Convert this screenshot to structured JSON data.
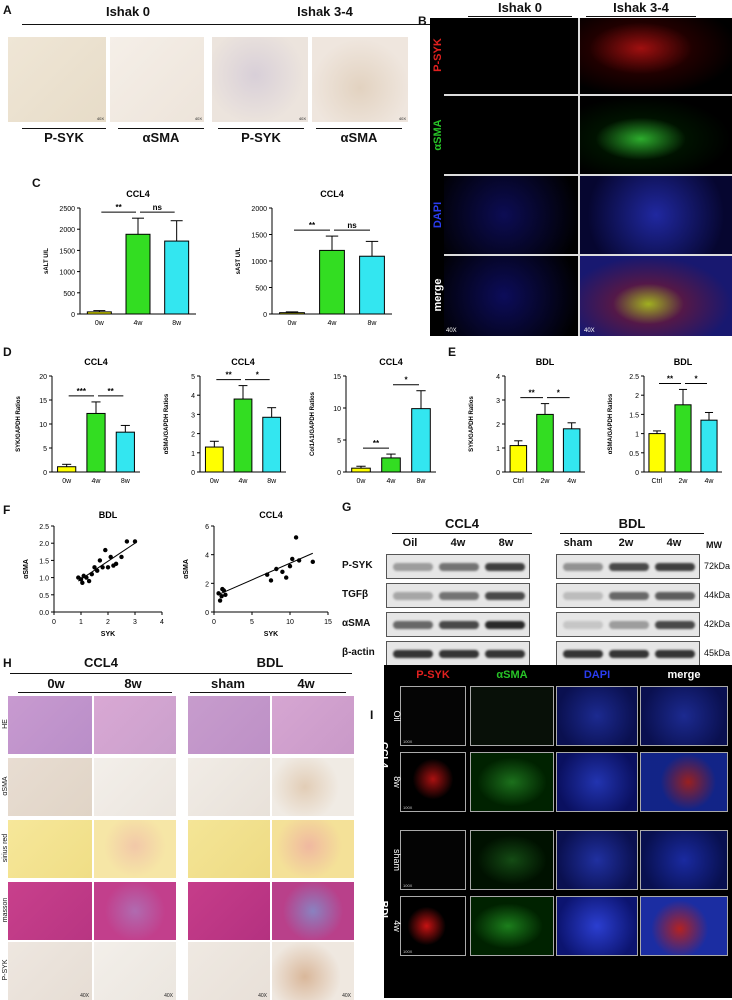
{
  "panels": {
    "A": {
      "label": "A",
      "headers": [
        "Ishak 0",
        "Ishak 3-4"
      ],
      "tile_labels": [
        "P-SYK",
        "αSMA",
        "P-SYK",
        "αSMA"
      ],
      "magnification": "40X"
    },
    "B": {
      "label": "B",
      "headers": [
        "Ishak 0",
        "Ishak 3-4"
      ],
      "row_labels": [
        "P-SYK",
        "αSMA",
        "DAPI",
        "merge"
      ],
      "row_colors": [
        "#e0201f",
        "#27c427",
        "#2a3cf0",
        "#ffffff"
      ],
      "magnification": "40X"
    },
    "C": {
      "label": "C"
    },
    "D": {
      "label": "D"
    },
    "E": {
      "label": "E"
    },
    "F": {
      "label": "F"
    },
    "G": {
      "label": "G",
      "group_headers": [
        "CCL4",
        "BDL"
      ],
      "lane_labels_ccl4": [
        "Oil",
        "4w",
        "8w"
      ],
      "lane_labels_bdl": [
        "sham",
        "2w",
        "4w"
      ],
      "mw_header": "MW",
      "rows": [
        {
          "protein": "P-SYK",
          "mw": "72kDa"
        },
        {
          "protein": "TGFβ",
          "mw": "44kDa"
        },
        {
          "protein": "αSMA",
          "mw": "42kDa"
        },
        {
          "protein": "β-actin",
          "mw": "45kDa"
        }
      ]
    },
    "H": {
      "label": "H",
      "group_headers": [
        "CCL4",
        "BDL"
      ],
      "col_labels": [
        "0w",
        "8w",
        "sham",
        "4w"
      ],
      "row_labels": [
        "HE",
        "αSMA",
        "sirius red",
        "masson",
        "P-SYK"
      ],
      "magnification": "40X"
    },
    "I": {
      "label": "I",
      "col_labels": [
        "P-SYK",
        "αSMA",
        "DAPI",
        "merge"
      ],
      "col_colors": [
        "#e0201f",
        "#27c427",
        "#2a3cf0",
        "#ffffff"
      ],
      "group_labels": [
        "CCL4",
        "BDL"
      ],
      "row_labels": [
        "Oil",
        "8w",
        "sham",
        "4w"
      ],
      "magnification": "100X"
    }
  },
  "chart_data": [
    {
      "id": "C1",
      "type": "bar",
      "title": "CCL4",
      "ylabel": "sALT U/L",
      "categories": [
        "0w",
        "4w",
        "8w"
      ],
      "values": [
        50,
        1880,
        1720
      ],
      "errors": [
        30,
        380,
        480
      ],
      "ylim": [
        0,
        2500
      ],
      "yticks": [
        0,
        500,
        1000,
        1500,
        2000,
        2500
      ],
      "colors": [
        "#ffff00",
        "#33dd22",
        "#33e6f0"
      ],
      "sig": [
        {
          "from": 0,
          "to": 1,
          "label": "**"
        },
        {
          "from": 1,
          "to": 2,
          "label": "ns"
        }
      ]
    },
    {
      "id": "C2",
      "type": "bar",
      "title": "CCL4",
      "ylabel": "sAST U/L",
      "categories": [
        "0w",
        "4w",
        "8w"
      ],
      "values": [
        25,
        1200,
        1090
      ],
      "errors": [
        15,
        270,
        280
      ],
      "ylim": [
        0,
        2000
      ],
      "yticks": [
        0,
        500,
        1000,
        1500,
        2000
      ],
      "colors": [
        "#ffff00",
        "#33dd22",
        "#33e6f0"
      ],
      "sig": [
        {
          "from": 0,
          "to": 1,
          "label": "**"
        },
        {
          "from": 1,
          "to": 2,
          "label": "ns"
        }
      ]
    },
    {
      "id": "D1",
      "type": "bar",
      "title": "CCL4",
      "ylabel": "SYK/GAPDH Ratios",
      "categories": [
        "0w",
        "4w",
        "8w"
      ],
      "values": [
        1.1,
        12.2,
        8.3
      ],
      "errors": [
        0.5,
        2.4,
        1.4
      ],
      "ylim": [
        0,
        20
      ],
      "yticks": [
        0,
        5,
        10,
        15,
        20
      ],
      "colors": [
        "#ffff00",
        "#33dd22",
        "#33e6f0"
      ],
      "sig": [
        {
          "from": 0,
          "to": 1,
          "label": "***"
        },
        {
          "from": 1,
          "to": 2,
          "label": "**"
        }
      ]
    },
    {
      "id": "D2",
      "type": "bar",
      "title": "CCL4",
      "ylabel": "αSMA/GAPDH Ratios",
      "categories": [
        "0w",
        "4w",
        "8w"
      ],
      "values": [
        1.3,
        3.8,
        2.85
      ],
      "errors": [
        0.3,
        0.7,
        0.5
      ],
      "ylim": [
        0,
        5
      ],
      "yticks": [
        0,
        1,
        2,
        3,
        4,
        5
      ],
      "colors": [
        "#ffff00",
        "#33dd22",
        "#33e6f0"
      ],
      "sig": [
        {
          "from": 0,
          "to": 1,
          "label": "**"
        },
        {
          "from": 1,
          "to": 2,
          "label": "*"
        }
      ]
    },
    {
      "id": "D3",
      "type": "bar",
      "title": "CCL4",
      "ylabel": "Col1A1/GAPDH Ratios",
      "categories": [
        "0w",
        "4w",
        "8w"
      ],
      "values": [
        0.6,
        2.2,
        9.9
      ],
      "errors": [
        0.3,
        0.6,
        2.8
      ],
      "ylim": [
        0,
        15
      ],
      "yticks": [
        0,
        5,
        10,
        15
      ],
      "colors": [
        "#ffff00",
        "#33dd22",
        "#33e6f0"
      ],
      "sig": [
        {
          "from": 0,
          "to": 1,
          "label": "**"
        },
        {
          "from": 1,
          "to": 2,
          "label": "*"
        }
      ]
    },
    {
      "id": "E1",
      "type": "bar",
      "title": "BDL",
      "ylabel": "SYK/GAPDH Ratios",
      "categories": [
        "Ctrl",
        "2w",
        "4w"
      ],
      "values": [
        1.1,
        2.4,
        1.8
      ],
      "errors": [
        0.2,
        0.45,
        0.25
      ],
      "ylim": [
        0,
        4
      ],
      "yticks": [
        0,
        1,
        2,
        3,
        4
      ],
      "colors": [
        "#ffff00",
        "#33dd22",
        "#33e6f0"
      ],
      "sig": [
        {
          "from": 0,
          "to": 1,
          "label": "**"
        },
        {
          "from": 1,
          "to": 2,
          "label": "*"
        }
      ]
    },
    {
      "id": "E2",
      "type": "bar",
      "title": "BDL",
      "ylabel": "αSMA/GAPDH Ratios",
      "categories": [
        "Ctrl",
        "2w",
        "4w"
      ],
      "values": [
        1.0,
        1.75,
        1.35
      ],
      "errors": [
        0.07,
        0.4,
        0.2
      ],
      "ylim": [
        0,
        2.5
      ],
      "yticks": [
        0.0,
        0.5,
        1.0,
        1.5,
        2.0,
        2.5
      ],
      "colors": [
        "#ffff00",
        "#33dd22",
        "#33e6f0"
      ],
      "sig": [
        {
          "from": 0,
          "to": 1,
          "label": "**"
        },
        {
          "from": 1,
          "to": 2,
          "label": "*"
        }
      ]
    },
    {
      "id": "F1",
      "type": "scatter",
      "title": "BDL",
      "xlabel": "SYK",
      "ylabel": "αSMA",
      "xlim": [
        0,
        4
      ],
      "ylim": [
        0,
        2.5
      ],
      "xticks": [
        0,
        1,
        2,
        3,
        4
      ],
      "yticks": [
        0.0,
        0.5,
        1.0,
        1.5,
        2.0,
        2.5
      ],
      "points": [
        [
          0.9,
          1.0
        ],
        [
          1.0,
          0.95
        ],
        [
          1.05,
          0.85
        ],
        [
          1.1,
          1.05
        ],
        [
          1.2,
          1.0
        ],
        [
          1.3,
          0.9
        ],
        [
          1.4,
          1.1
        ],
        [
          1.5,
          1.3
        ],
        [
          1.6,
          1.2
        ],
        [
          1.7,
          1.5
        ],
        [
          1.8,
          1.3
        ],
        [
          1.9,
          1.8
        ],
        [
          2.0,
          1.3
        ],
        [
          2.1,
          1.6
        ],
        [
          2.2,
          1.35
        ],
        [
          2.3,
          1.4
        ],
        [
          2.5,
          1.6
        ],
        [
          2.7,
          2.05
        ],
        [
          3.0,
          2.05
        ]
      ],
      "fit": [
        [
          0.9,
          0.9
        ],
        [
          3.0,
          2.0
        ]
      ]
    },
    {
      "id": "F2",
      "type": "scatter",
      "title": "CCL4",
      "xlabel": "SYK",
      "ylabel": "αSMA",
      "xlim": [
        0,
        15
      ],
      "ylim": [
        0,
        6
      ],
      "xticks": [
        0,
        5,
        10,
        15
      ],
      "yticks": [
        0,
        2,
        4,
        6
      ],
      "points": [
        [
          0.6,
          1.3
        ],
        [
          0.8,
          0.8
        ],
        [
          1.0,
          1.1
        ],
        [
          1.1,
          1.6
        ],
        [
          1.3,
          1.5
        ],
        [
          1.5,
          1.2
        ],
        [
          7.0,
          2.6
        ],
        [
          7.5,
          2.2
        ],
        [
          8.2,
          3.0
        ],
        [
          9.0,
          2.8
        ],
        [
          9.5,
          2.4
        ],
        [
          10.0,
          3.2
        ],
        [
          10.3,
          3.7
        ],
        [
          10.8,
          5.2
        ],
        [
          11.2,
          3.6
        ],
        [
          13.0,
          3.5
        ]
      ],
      "fit": [
        [
          0.5,
          1.2
        ],
        [
          13.0,
          4.1
        ]
      ]
    }
  ]
}
